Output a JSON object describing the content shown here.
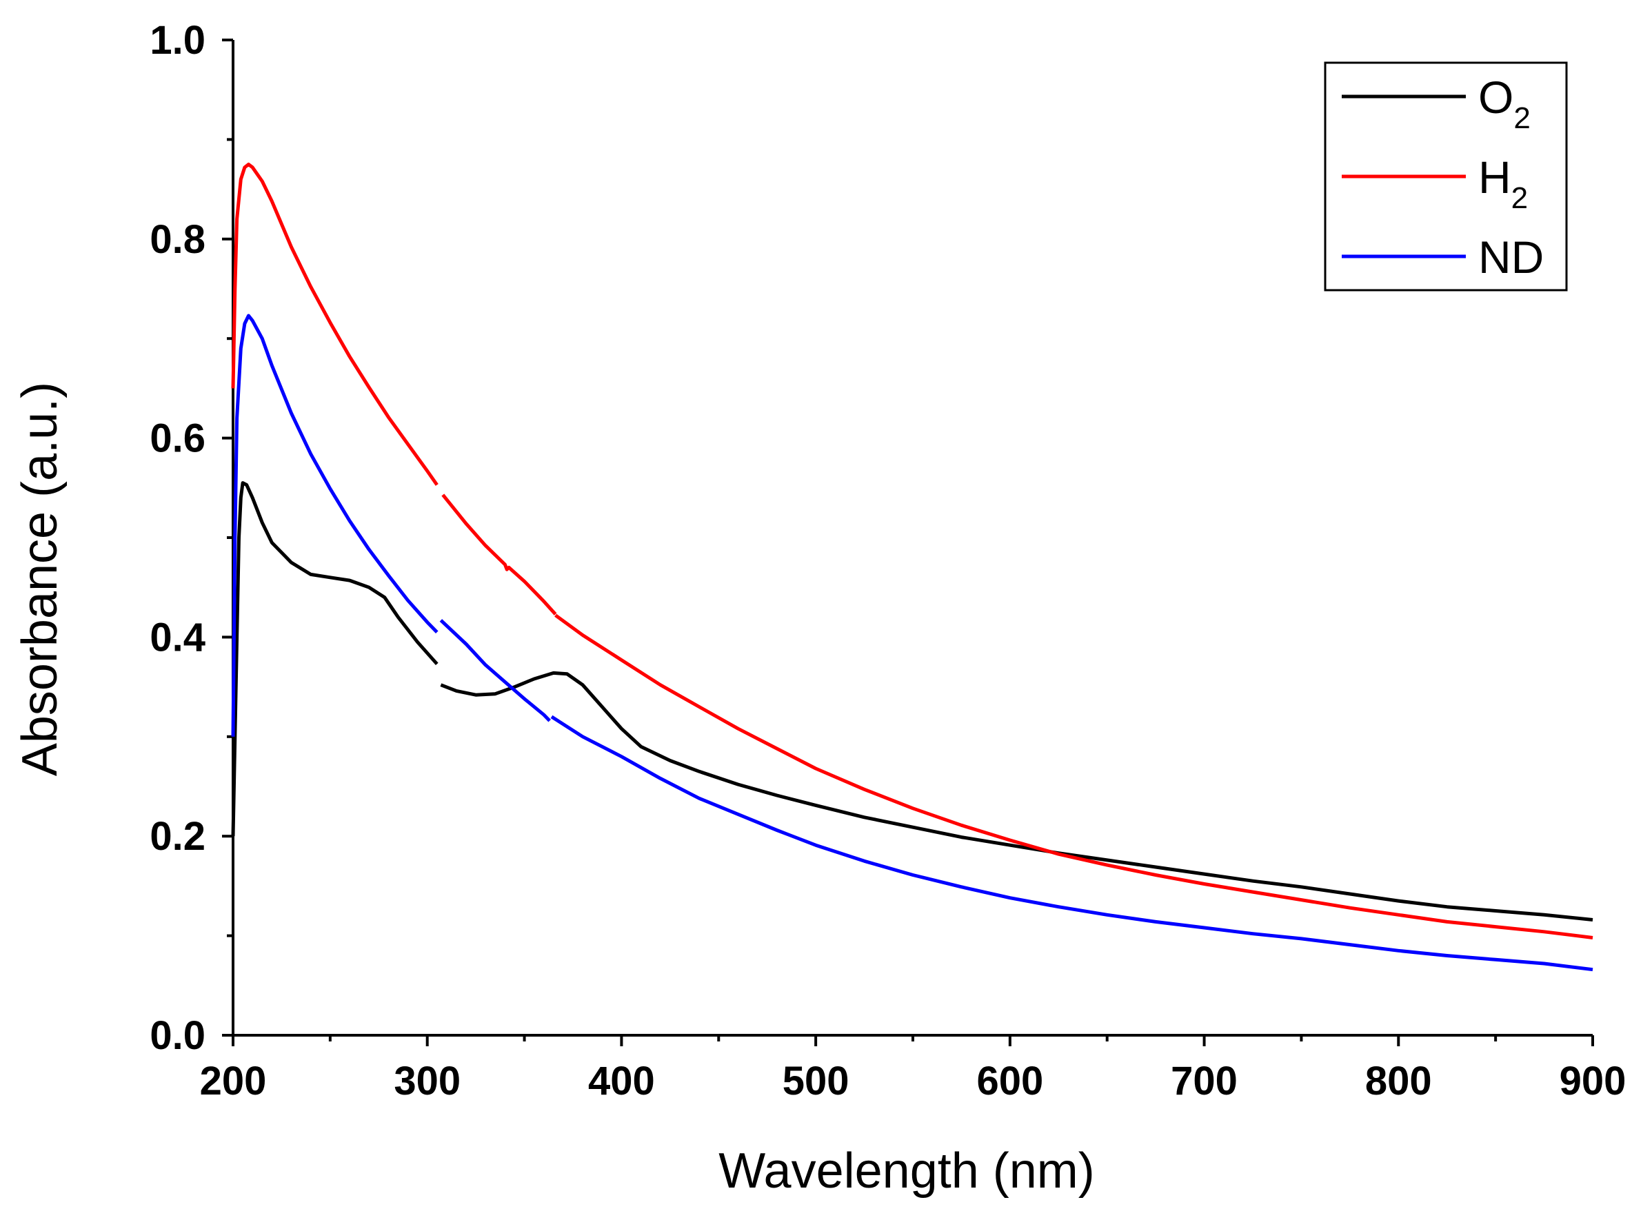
{
  "chart_data": {
    "type": "line",
    "title": "",
    "xlabel": "Wavelength (nm)",
    "ylabel": "Absorbance (a.u.)",
    "xlim": [
      200,
      900
    ],
    "ylim": [
      0.0,
      1.0
    ],
    "x_ticks": [
      200,
      300,
      400,
      500,
      600,
      700,
      800,
      900
    ],
    "x_tick_labels": [
      "200",
      "300",
      "400",
      "500",
      "600",
      "700",
      "800",
      "900"
    ],
    "x_minor_ticks": [
      250,
      350,
      450,
      550,
      650,
      750,
      850
    ],
    "y_ticks": [
      0.0,
      0.2,
      0.4,
      0.6,
      0.8,
      1.0
    ],
    "y_tick_labels": [
      "0.0",
      "0.2",
      "0.4",
      "0.6",
      "0.8",
      "1.0"
    ],
    "y_minor_ticks": [
      0.1,
      0.3,
      0.5,
      0.7,
      0.9
    ],
    "legend_position": "top-right",
    "series": [
      {
        "name": "O2",
        "label_main": "O",
        "label_sub": "2",
        "color": "#000000",
        "segments": [
          [
            [
              200,
              0.2
            ],
            [
              201,
              0.3
            ],
            [
              202,
              0.4
            ],
            [
              203,
              0.5
            ],
            [
              204,
              0.54
            ],
            [
              205,
              0.555
            ],
            [
              207,
              0.553
            ],
            [
              210,
              0.54
            ],
            [
              215,
              0.515
            ],
            [
              220,
              0.495
            ],
            [
              230,
              0.475
            ],
            [
              240,
              0.463
            ],
            [
              250,
              0.46
            ],
            [
              260,
              0.457
            ],
            [
              270,
              0.45
            ],
            [
              278,
              0.44
            ],
            [
              285,
              0.42
            ],
            [
              295,
              0.395
            ],
            [
              305,
              0.373
            ]
          ],
          [
            [
              307,
              0.352
            ],
            [
              315,
              0.346
            ],
            [
              325,
              0.342
            ],
            [
              335,
              0.343
            ],
            [
              345,
              0.35
            ],
            [
              355,
              0.358
            ],
            [
              365,
              0.364
            ],
            [
              372,
              0.363
            ],
            [
              380,
              0.352
            ],
            [
              390,
              0.33
            ],
            [
              400,
              0.308
            ],
            [
              410,
              0.29
            ],
            [
              425,
              0.276
            ],
            [
              440,
              0.265
            ],
            [
              460,
              0.252
            ],
            [
              480,
              0.241
            ],
            [
              500,
              0.231
            ],
            [
              525,
              0.219
            ],
            [
              550,
              0.209
            ],
            [
              575,
              0.199
            ],
            [
              600,
              0.191
            ],
            [
              625,
              0.183
            ],
            [
              650,
              0.176
            ],
            [
              675,
              0.169
            ],
            [
              700,
              0.162
            ],
            [
              725,
              0.155
            ],
            [
              750,
              0.149
            ],
            [
              775,
              0.142
            ],
            [
              800,
              0.135
            ],
            [
              825,
              0.129
            ],
            [
              850,
              0.125
            ],
            [
              875,
              0.121
            ],
            [
              900,
              0.116
            ]
          ]
        ]
      },
      {
        "name": "H2",
        "label_main": "H",
        "label_sub": "2",
        "color": "#ff0000",
        "segments": [
          [
            [
              200,
              0.65
            ],
            [
              201,
              0.75
            ],
            [
              202,
              0.82
            ],
            [
              204,
              0.86
            ],
            [
              206,
              0.872
            ],
            [
              208,
              0.875
            ],
            [
              210,
              0.872
            ],
            [
              215,
              0.858
            ],
            [
              220,
              0.838
            ],
            [
              230,
              0.792
            ],
            [
              240,
              0.752
            ],
            [
              250,
              0.716
            ],
            [
              260,
              0.682
            ],
            [
              270,
              0.651
            ],
            [
              280,
              0.621
            ],
            [
              290,
              0.594
            ],
            [
              300,
              0.567
            ],
            [
              305,
              0.553
            ]
          ],
          [
            [
              308,
              0.543
            ],
            [
              320,
              0.514
            ],
            [
              330,
              0.492
            ],
            [
              340,
              0.473
            ],
            [
              341,
              0.468
            ],
            [
              342,
              0.47
            ],
            [
              350,
              0.456
            ],
            [
              360,
              0.436
            ],
            [
              366,
              0.423
            ]
          ],
          [
            [
              366,
              0.422
            ],
            [
              380,
              0.402
            ],
            [
              400,
              0.377
            ],
            [
              420,
              0.352
            ],
            [
              440,
              0.33
            ],
            [
              460,
              0.308
            ],
            [
              480,
              0.288
            ],
            [
              500,
              0.268
            ],
            [
              525,
              0.247
            ],
            [
              550,
              0.228
            ],
            [
              575,
              0.211
            ],
            [
              600,
              0.196
            ],
            [
              625,
              0.182
            ],
            [
              650,
              0.171
            ],
            [
              675,
              0.161
            ],
            [
              700,
              0.152
            ],
            [
              725,
              0.144
            ],
            [
              750,
              0.136
            ],
            [
              775,
              0.128
            ],
            [
              800,
              0.121
            ],
            [
              825,
              0.114
            ],
            [
              850,
              0.109
            ],
            [
              875,
              0.104
            ],
            [
              900,
              0.098
            ]
          ]
        ]
      },
      {
        "name": "ND",
        "label_main": "ND",
        "label_sub": "",
        "color": "#0000ff",
        "segments": [
          [
            [
              200,
              0.3
            ],
            [
              201,
              0.5
            ],
            [
              202,
              0.62
            ],
            [
              204,
              0.69
            ],
            [
              206,
              0.715
            ],
            [
              208,
              0.723
            ],
            [
              210,
              0.718
            ],
            [
              215,
              0.7
            ],
            [
              220,
              0.673
            ],
            [
              230,
              0.625
            ],
            [
              240,
              0.584
            ],
            [
              250,
              0.549
            ],
            [
              260,
              0.517
            ],
            [
              270,
              0.488
            ],
            [
              280,
              0.462
            ],
            [
              290,
              0.437
            ],
            [
              300,
              0.415
            ],
            [
              305,
              0.405
            ]
          ],
          [
            [
              307,
              0.417
            ],
            [
              320,
              0.393
            ],
            [
              330,
              0.372
            ],
            [
              340,
              0.355
            ],
            [
              350,
              0.338
            ],
            [
              360,
              0.322
            ],
            [
              363,
              0.316
            ]
          ],
          [
            [
              364,
              0.32
            ],
            [
              380,
              0.3
            ],
            [
              400,
              0.28
            ],
            [
              420,
              0.258
            ],
            [
              440,
              0.238
            ],
            [
              460,
              0.222
            ],
            [
              480,
              0.206
            ],
            [
              500,
              0.191
            ],
            [
              525,
              0.175
            ],
            [
              550,
              0.161
            ],
            [
              575,
              0.149
            ],
            [
              600,
              0.138
            ],
            [
              625,
              0.129
            ],
            [
              650,
              0.121
            ],
            [
              675,
              0.114
            ],
            [
              700,
              0.108
            ],
            [
              725,
              0.102
            ],
            [
              750,
              0.097
            ],
            [
              775,
              0.091
            ],
            [
              800,
              0.085
            ],
            [
              825,
              0.08
            ],
            [
              850,
              0.076
            ],
            [
              875,
              0.072
            ],
            [
              900,
              0.066
            ]
          ]
        ]
      }
    ]
  }
}
